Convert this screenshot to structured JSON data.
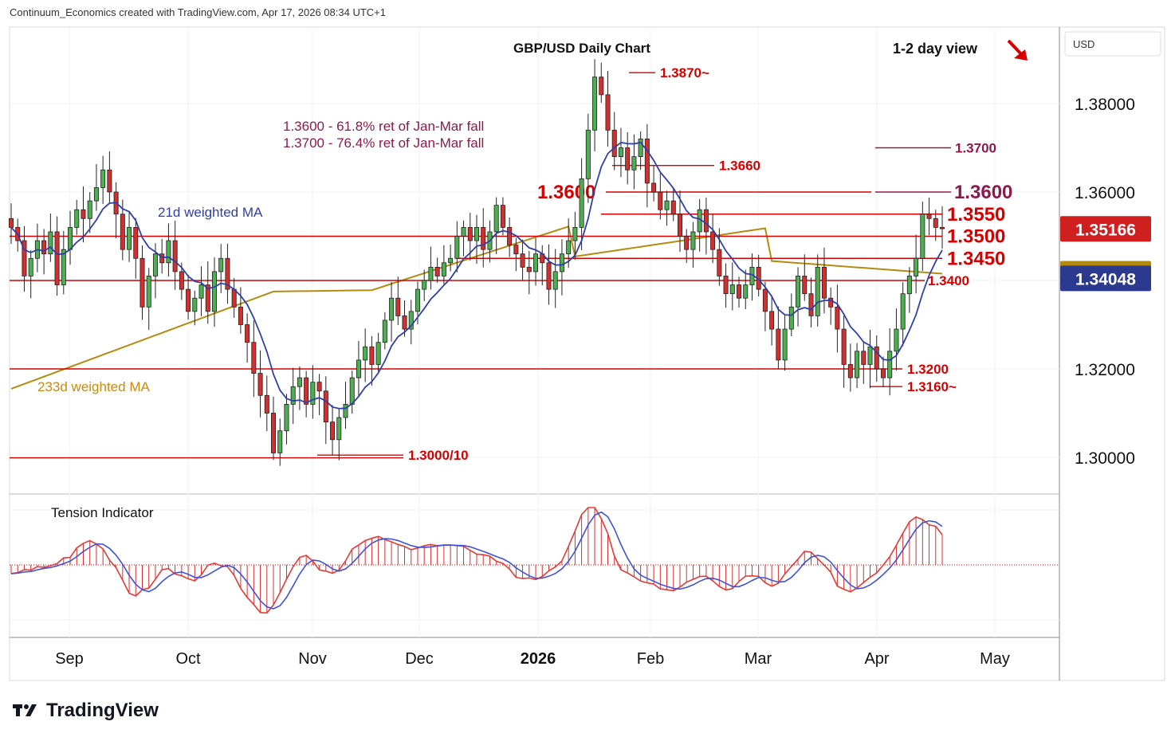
{
  "header": {
    "credit": "Continuum_Economics created with TradingView.com, Apr 17, 2026 08:34 UTC+1"
  },
  "footer": {
    "brand": "TradingView"
  },
  "chart_data": {
    "type": "candlestick",
    "title": "GBP/USD Daily Chart",
    "view_label": "1-2 day view",
    "view_arrow": "down-right-arrow",
    "currency": "USD",
    "ylim": [
      1.29,
      1.396
    ],
    "y_ticks": [
      "1.38000",
      "1.36000",
      "1.34000",
      "1.32000",
      "1.30000"
    ],
    "y_tick_values": [
      1.38,
      1.36,
      1.34,
      1.32,
      1.3
    ],
    "x_ticks": [
      "Sep",
      "Oct",
      "Nov",
      "Dec",
      "2026",
      "Feb",
      "Mar",
      "Apr",
      "May"
    ],
    "price_badges": [
      {
        "value": "1.35166",
        "color": "#d01f1f"
      },
      {
        "value": "1.34153",
        "color": "#b48a0f"
      },
      {
        "value": "1.34048",
        "color": "#2b3a8f"
      }
    ],
    "annotations": {
      "fib_1": "1.3600 - 61.8% ret of Jan-Mar fall",
      "fib_2": "1.3700 - 76.4% ret of Jan-Mar fall",
      "ma21": "21d weighted MA",
      "ma233": "233d weighted MA"
    },
    "levels": [
      {
        "label": "1.3870~",
        "value": 1.387
      },
      {
        "label": "1.3700",
        "value": 1.37
      },
      {
        "label": "1.3660",
        "value": 1.366
      },
      {
        "label": "1.3600",
        "value": 1.36
      },
      {
        "label": "1.3600",
        "value": 1.36
      },
      {
        "label": "1.3550",
        "value": 1.355
      },
      {
        "label": "1.3500",
        "value": 1.35
      },
      {
        "label": "1.3450",
        "value": 1.345
      },
      {
        "label": "1.3400",
        "value": 1.34
      },
      {
        "label": "1.3200",
        "value": 1.32
      },
      {
        "label": "1.3160~",
        "value": 1.316
      },
      {
        "label": "1.3000/10",
        "value": 1.3005
      }
    ],
    "indicator": {
      "title": "Tension Indicator"
    },
    "colors": {
      "up": "#4caf50",
      "down": "#d32f2f",
      "ma21": "#2f3fa8",
      "ma233": "#b48a0f",
      "level": "#d50000",
      "fib": "#8b1a4a"
    },
    "price_path": [
      1.352,
      1.349,
      1.341,
      1.345,
      1.349,
      1.346,
      1.351,
      1.339,
      1.347,
      1.352,
      1.356,
      1.354,
      1.358,
      1.361,
      1.365,
      1.36,
      1.355,
      1.347,
      1.352,
      1.345,
      1.334,
      1.341,
      1.346,
      1.344,
      1.349,
      1.342,
      1.338,
      1.333,
      1.336,
      1.339,
      1.333,
      1.342,
      1.345,
      1.338,
      1.334,
      1.33,
      1.326,
      1.319,
      1.314,
      1.31,
      1.301,
      1.306,
      1.312,
      1.316,
      1.318,
      1.312,
      1.317,
      1.315,
      1.308,
      1.304,
      1.309,
      1.312,
      1.318,
      1.322,
      1.325,
      1.321,
      1.326,
      1.331,
      1.336,
      1.332,
      1.329,
      1.333,
      1.338,
      1.34,
      1.343,
      1.341,
      1.344,
      1.345,
      1.35,
      1.352,
      1.349,
      1.352,
      1.347,
      1.351,
      1.357,
      1.352,
      1.348,
      1.346,
      1.343,
      1.342,
      1.346,
      1.344,
      1.338,
      1.342,
      1.346,
      1.349,
      1.352,
      1.363,
      1.374,
      1.386,
      1.382,
      1.374,
      1.368,
      1.37,
      1.365,
      1.368,
      1.372,
      1.362,
      1.36,
      1.356,
      1.358,
      1.355,
      1.35,
      1.347,
      1.351,
      1.356,
      1.351,
      1.347,
      1.341,
      1.337,
      1.339,
      1.336,
      1.339,
      1.343,
      1.338,
      1.333,
      1.329,
      1.322,
      1.329,
      1.334,
      1.341,
      1.337,
      1.332,
      1.343,
      1.336,
      1.334,
      1.329,
      1.321,
      1.318,
      1.324,
      1.321,
      1.325,
      1.32,
      1.318,
      1.324,
      1.329,
      1.337,
      1.341,
      1.345,
      1.355,
      1.354,
      1.352,
      1.3517
    ]
  }
}
